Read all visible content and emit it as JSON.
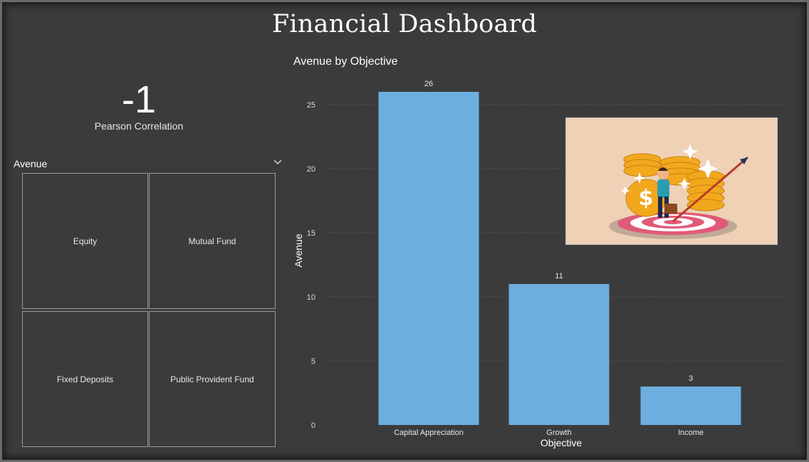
{
  "dashboard": {
    "title": "Financial Dashboard"
  },
  "card": {
    "value": "-1",
    "label": "Pearson Correlation"
  },
  "slicer": {
    "title": "Avenue",
    "tiles": [
      "Equity",
      "Mutual Fund",
      "Fixed Deposits",
      "Public Provident Fund"
    ]
  },
  "colors": {
    "bar": "#6caee0",
    "background": "#3b3b3b",
    "grid": "#5a5a5a"
  },
  "chart_data": {
    "type": "bar",
    "title": "Avenue by Objective",
    "xlabel": "Objective",
    "ylabel": "Avenue",
    "categories": [
      "Capital Appreciation",
      "Growth",
      "Income"
    ],
    "values": [
      26,
      11,
      3
    ],
    "data_labels": [
      "26",
      "11",
      "3"
    ],
    "yticks": [
      0,
      5,
      10,
      15,
      20,
      25
    ],
    "ylim": [
      0,
      26
    ],
    "grid": true
  },
  "image": {
    "subject": "investor-target-coins-illustration"
  }
}
